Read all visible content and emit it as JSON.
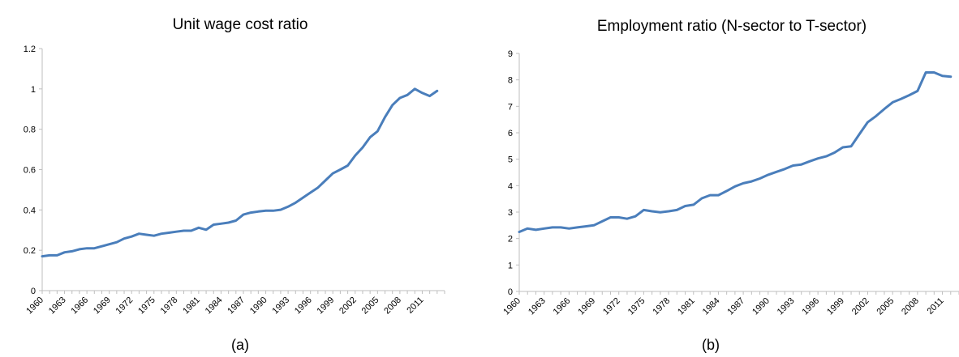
{
  "colors": {
    "line": "#4a7ebb",
    "axis": "#bfbfbf"
  },
  "chart_data": [
    {
      "type": "line",
      "title": "Unit wage cost ratio",
      "caption": "(a)",
      "xlabel": "",
      "ylabel": "",
      "ylim": [
        0,
        1.2
      ],
      "yticks": [
        "0",
        "0.2",
        "0.4",
        "0.6",
        "0.8",
        "1",
        "1.2"
      ],
      "xticks": [
        "1960",
        "1963",
        "1966",
        "1969",
        "1972",
        "1975",
        "1978",
        "1981",
        "1984",
        "1987",
        "1990",
        "1993",
        "1996",
        "1999",
        "2002",
        "2005",
        "2008",
        "2011"
      ],
      "grid": false,
      "legend": "none",
      "x": [
        1960,
        1961,
        1962,
        1963,
        1964,
        1965,
        1966,
        1967,
        1968,
        1969,
        1970,
        1971,
        1972,
        1973,
        1974,
        1975,
        1976,
        1977,
        1978,
        1979,
        1980,
        1981,
        1982,
        1983,
        1984,
        1985,
        1986,
        1987,
        1988,
        1989,
        1990,
        1991,
        1992,
        1993,
        1994,
        1995,
        1996,
        1997,
        1998,
        1999,
        2000,
        2001,
        2002,
        2003,
        2004,
        2005,
        2006,
        2007,
        2008,
        2009,
        2010,
        2011,
        2012,
        2013
      ],
      "series": [
        {
          "values": [
            0.17,
            0.175,
            0.175,
            0.19,
            0.195,
            0.205,
            0.21,
            0.21,
            0.22,
            0.23,
            0.24,
            0.258,
            0.268,
            0.282,
            0.277,
            0.272,
            0.282,
            0.287,
            0.292,
            0.297,
            0.297,
            0.312,
            0.302,
            0.327,
            0.332,
            0.337,
            0.347,
            0.377,
            0.387,
            0.392,
            0.396,
            0.396,
            0.401,
            0.416,
            0.436,
            0.461,
            0.486,
            0.511,
            0.546,
            0.581,
            0.6,
            0.62,
            0.67,
            0.71,
            0.76,
            0.79,
            0.86,
            0.92,
            0.955,
            0.97,
            1.0,
            0.98,
            0.965,
            0.99
          ]
        }
      ]
    },
    {
      "type": "line",
      "title": "Employment ratio (N-sector to T-sector)",
      "caption": "(b)",
      "xlabel": "",
      "ylabel": "",
      "ylim": [
        0,
        9
      ],
      "yticks": [
        "0",
        "1",
        "2",
        "3",
        "4",
        "5",
        "6",
        "7",
        "8",
        "9"
      ],
      "xticks": [
        "1960",
        "1963",
        "1966",
        "1969",
        "1972",
        "1975",
        "1978",
        "1981",
        "1984",
        "1987",
        "1990",
        "1993",
        "1996",
        "1999",
        "2002",
        "2005",
        "2008",
        "2011"
      ],
      "grid": false,
      "legend": "none",
      "x": [
        1960,
        1961,
        1962,
        1963,
        1964,
        1965,
        1966,
        1967,
        1968,
        1969,
        1970,
        1971,
        1972,
        1973,
        1974,
        1975,
        1976,
        1977,
        1978,
        1979,
        1980,
        1981,
        1982,
        1983,
        1984,
        1985,
        1986,
        1987,
        1988,
        1989,
        1990,
        1991,
        1992,
        1993,
        1994,
        1995,
        1996,
        1997,
        1998,
        1999,
        2000,
        2001,
        2002,
        2003,
        2004,
        2005,
        2006,
        2007,
        2008,
        2009,
        2010,
        2011,
        2012
      ],
      "series": [
        {
          "values": [
            2.25,
            2.38,
            2.33,
            2.38,
            2.42,
            2.42,
            2.38,
            2.42,
            2.46,
            2.5,
            2.65,
            2.8,
            2.8,
            2.75,
            2.84,
            3.08,
            3.03,
            2.99,
            3.03,
            3.08,
            3.23,
            3.28,
            3.52,
            3.64,
            3.64,
            3.8,
            3.97,
            4.09,
            4.16,
            4.27,
            4.41,
            4.52,
            4.63,
            4.76,
            4.8,
            4.92,
            5.03,
            5.11,
            5.25,
            5.45,
            5.49,
            5.95,
            6.4,
            6.63,
            6.9,
            7.15,
            7.28,
            7.42,
            7.58,
            8.28,
            8.28,
            8.15,
            8.12
          ]
        }
      ]
    }
  ]
}
